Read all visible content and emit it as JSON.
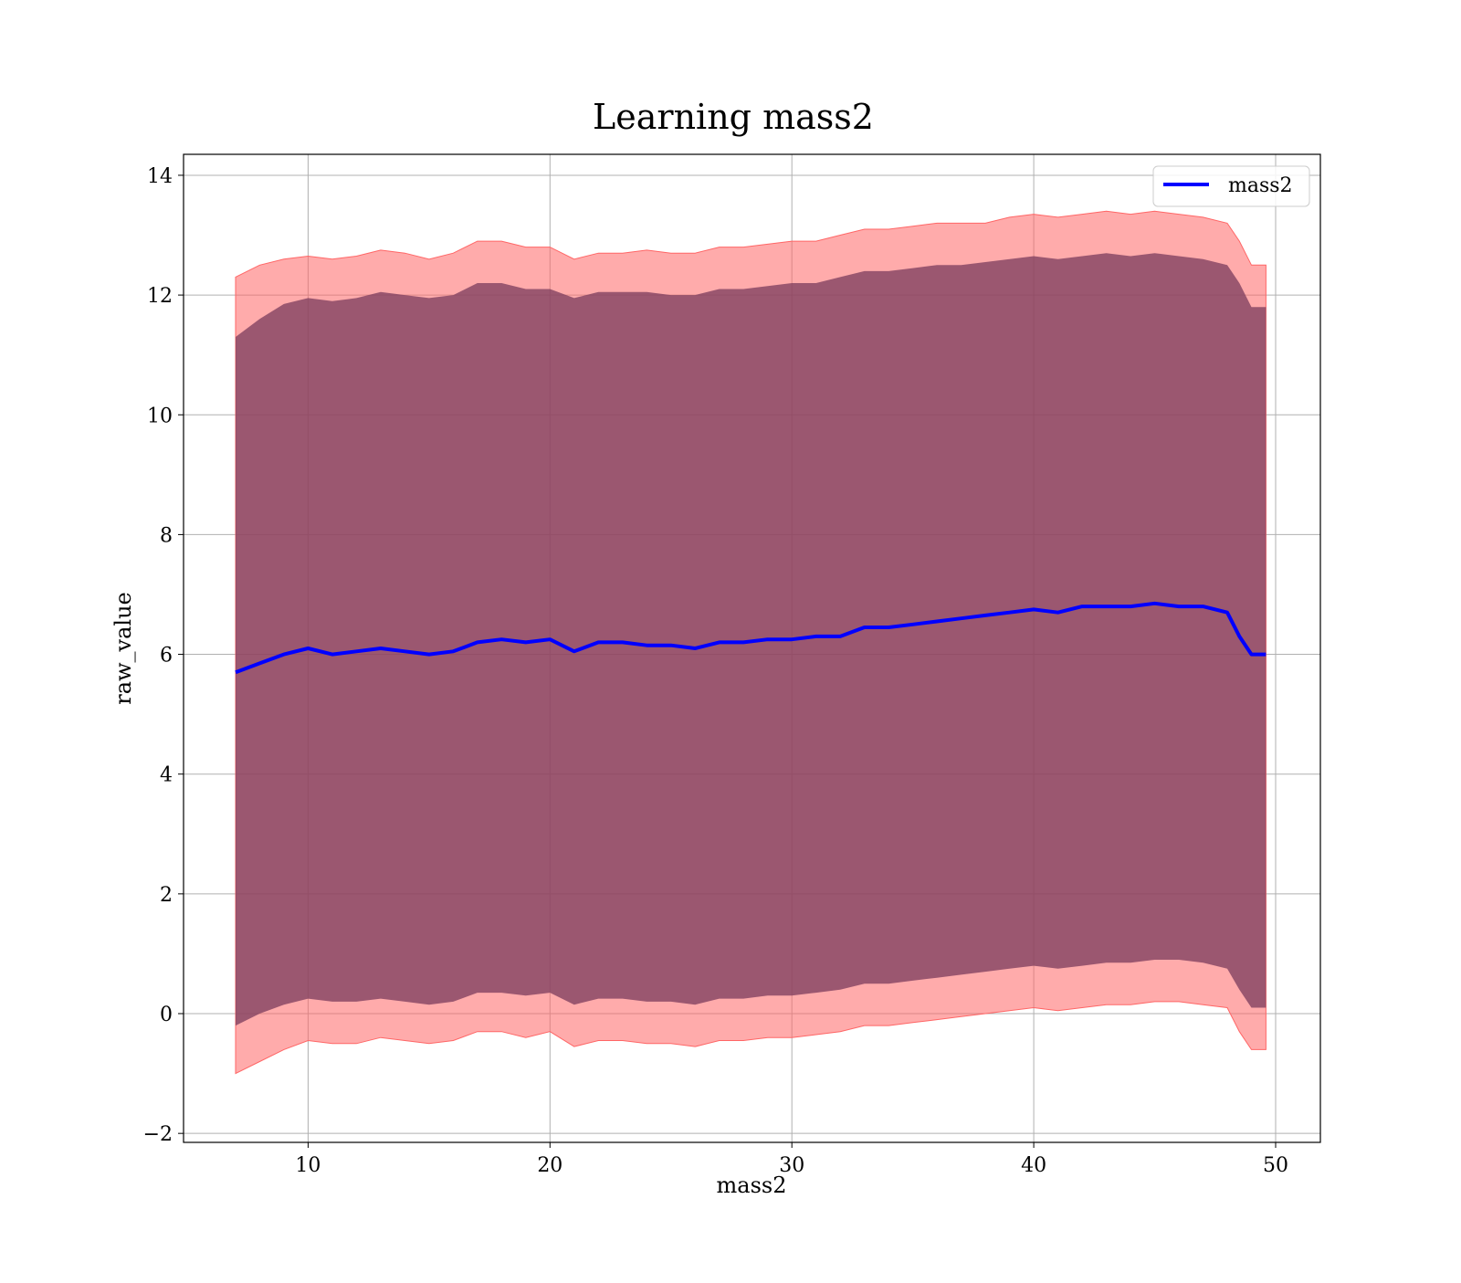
{
  "chart_data": {
    "type": "line",
    "title": "Learning mass2",
    "xlabel": "mass2",
    "ylabel": "raw_value",
    "xlim": [
      4.85,
      51.85
    ],
    "ylim": [
      -2.15,
      14.35
    ],
    "xticks": [
      10,
      20,
      30,
      40,
      50
    ],
    "yticks": [
      -2,
      0,
      2,
      4,
      6,
      8,
      10,
      12,
      14
    ],
    "xtick_labels": [
      "10",
      "20",
      "30",
      "40",
      "50"
    ],
    "ytick_labels": [
      "−2",
      "0",
      "2",
      "4",
      "6",
      "8",
      "10",
      "12",
      "14"
    ],
    "grid": true,
    "legend": {
      "placement": "top-right",
      "entries": [
        "mass2"
      ]
    },
    "colors": {
      "line": "#0000ff",
      "outer_band": "#ff6666",
      "inner_band": "#7f3f5f",
      "grid": "#b0b0b0"
    },
    "x": [
      7,
      8,
      9,
      10,
      11,
      12,
      13,
      14,
      15,
      16,
      17,
      18,
      19,
      20,
      21,
      22,
      23,
      24,
      25,
      26,
      27,
      28,
      29,
      30,
      31,
      32,
      33,
      34,
      35,
      36,
      37,
      38,
      39,
      40,
      41,
      42,
      43,
      44,
      45,
      46,
      47,
      48,
      48.5,
      49,
      49.6
    ],
    "series": [
      {
        "name": "mass2",
        "values": [
          5.7,
          5.85,
          6.0,
          6.1,
          6.0,
          6.05,
          6.1,
          6.05,
          6.0,
          6.05,
          6.2,
          6.25,
          6.2,
          6.25,
          6.05,
          6.2,
          6.2,
          6.15,
          6.15,
          6.1,
          6.2,
          6.2,
          6.25,
          6.25,
          6.3,
          6.3,
          6.45,
          6.45,
          6.5,
          6.55,
          6.6,
          6.65,
          6.7,
          6.75,
          6.7,
          6.8,
          6.8,
          6.8,
          6.85,
          6.8,
          6.8,
          6.7,
          6.3,
          6.0,
          6.0
        ]
      }
    ],
    "bands": [
      {
        "upper": [
          12.3,
          12.5,
          12.6,
          12.65,
          12.6,
          12.65,
          12.75,
          12.7,
          12.6,
          12.7,
          12.9,
          12.9,
          12.8,
          12.8,
          12.6,
          12.7,
          12.7,
          12.75,
          12.7,
          12.7,
          12.8,
          12.8,
          12.85,
          12.9,
          12.9,
          13.0,
          13.1,
          13.1,
          13.15,
          13.2,
          13.2,
          13.2,
          13.3,
          13.35,
          13.3,
          13.35,
          13.4,
          13.35,
          13.4,
          13.35,
          13.3,
          13.2,
          12.9,
          12.5,
          12.5
        ],
        "lower": [
          -1.0,
          -0.8,
          -0.6,
          -0.45,
          -0.5,
          -0.5,
          -0.4,
          -0.45,
          -0.5,
          -0.45,
          -0.3,
          -0.3,
          -0.4,
          -0.3,
          -0.55,
          -0.45,
          -0.45,
          -0.5,
          -0.5,
          -0.55,
          -0.45,
          -0.45,
          -0.4,
          -0.4,
          -0.35,
          -0.3,
          -0.2,
          -0.2,
          -0.15,
          -0.1,
          -0.05,
          0.0,
          0.05,
          0.1,
          0.05,
          0.1,
          0.15,
          0.15,
          0.2,
          0.2,
          0.15,
          0.1,
          -0.3,
          -0.6,
          -0.6
        ]
      },
      {
        "upper": [
          11.3,
          11.6,
          11.85,
          11.95,
          11.9,
          11.95,
          12.05,
          12.0,
          11.95,
          12.0,
          12.2,
          12.2,
          12.1,
          12.1,
          11.95,
          12.05,
          12.05,
          12.05,
          12.0,
          12.0,
          12.1,
          12.1,
          12.15,
          12.2,
          12.2,
          12.3,
          12.4,
          12.4,
          12.45,
          12.5,
          12.5,
          12.55,
          12.6,
          12.65,
          12.6,
          12.65,
          12.7,
          12.65,
          12.7,
          12.65,
          12.6,
          12.5,
          12.2,
          11.8,
          11.8
        ],
        "lower": [
          -0.2,
          0.0,
          0.15,
          0.25,
          0.2,
          0.2,
          0.25,
          0.2,
          0.15,
          0.2,
          0.35,
          0.35,
          0.3,
          0.35,
          0.15,
          0.25,
          0.25,
          0.2,
          0.2,
          0.15,
          0.25,
          0.25,
          0.3,
          0.3,
          0.35,
          0.4,
          0.5,
          0.5,
          0.55,
          0.6,
          0.65,
          0.7,
          0.75,
          0.8,
          0.75,
          0.8,
          0.85,
          0.85,
          0.9,
          0.9,
          0.85,
          0.75,
          0.4,
          0.1,
          0.1
        ]
      }
    ]
  }
}
